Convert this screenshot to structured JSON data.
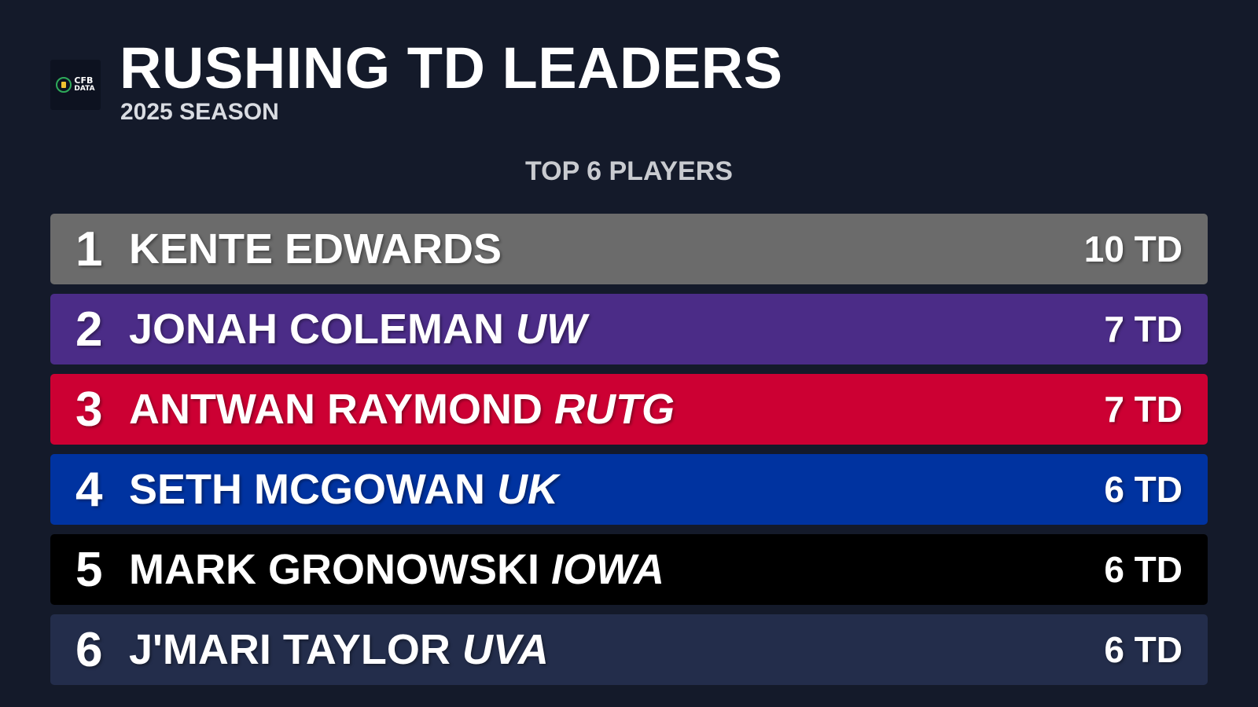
{
  "header": {
    "title": "RUSHING TD LEADERS",
    "subtitle": "2025 SEASON",
    "logo": {
      "line1": "CFB",
      "line2": "DATA"
    }
  },
  "section_label": "TOP 6 PLAYERS",
  "leaders": [
    {
      "rank": "1",
      "name": "KENTE EDWARDS",
      "team": "",
      "value": "10 TD",
      "color": "#6b6b6b"
    },
    {
      "rank": "2",
      "name": "JONAH COLEMAN",
      "team": "UW",
      "value": "7 TD",
      "color": "#4b2c87"
    },
    {
      "rank": "3",
      "name": "ANTWAN RAYMOND",
      "team": "RUTG",
      "value": "7 TD",
      "color": "#cc0033"
    },
    {
      "rank": "4",
      "name": "SETH MCGOWAN",
      "team": "UK",
      "value": "6 TD",
      "color": "#0033a0"
    },
    {
      "rank": "5",
      "name": "MARK GRONOWSKI",
      "team": "IOWA",
      "value": "6 TD",
      "color": "#000000"
    },
    {
      "rank": "6",
      "name": "J'MARI TAYLOR",
      "team": "UVA",
      "value": "6 TD",
      "color": "#232d4b"
    }
  ]
}
